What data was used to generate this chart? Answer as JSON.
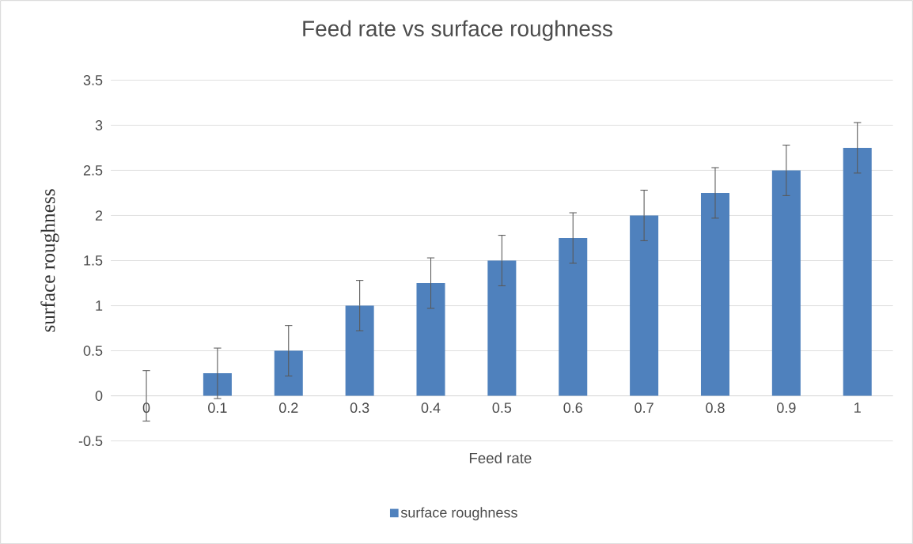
{
  "chart_data": {
    "type": "bar",
    "title": "Feed rate vs surface roughness",
    "xlabel": "Feed rate",
    "ylabel": "surface roughness",
    "categories": [
      "0",
      "0.1",
      "0.2",
      "0.3",
      "0.4",
      "0.5",
      "0.6",
      "0.7",
      "0.8",
      "0.9",
      "1"
    ],
    "series": [
      {
        "name": "surface roughness",
        "color": "#4f81bd",
        "values": [
          0,
          0.25,
          0.5,
          1,
          1.25,
          1.5,
          1.75,
          2,
          2.25,
          2.5,
          2.75
        ],
        "errors": [
          0.28,
          0.28,
          0.28,
          0.28,
          0.28,
          0.28,
          0.28,
          0.28,
          0.28,
          0.28,
          0.28
        ]
      }
    ],
    "ylim": [
      -0.5,
      3.5
    ],
    "yticks": [
      -0.5,
      0,
      0.5,
      1,
      1.5,
      2,
      2.5,
      3,
      3.5
    ],
    "grid": "y",
    "legend": "bottom"
  }
}
